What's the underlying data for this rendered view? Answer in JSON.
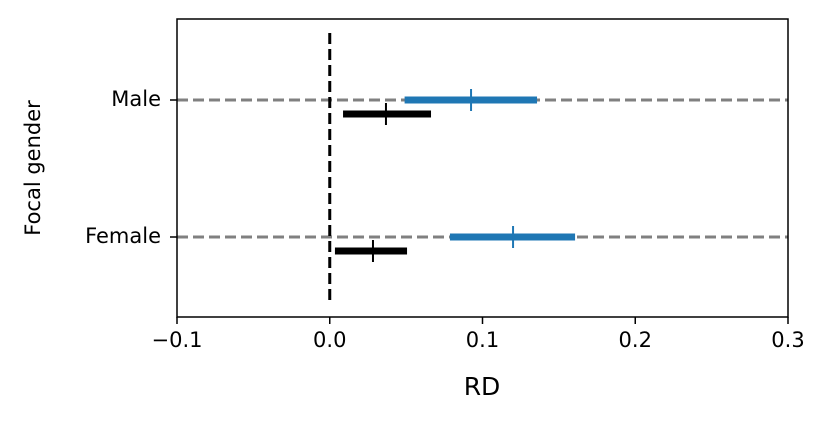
{
  "chart_data": {
    "type": "errorbar",
    "orientation": "horizontal",
    "xlabel": "RD",
    "ylabel": "Focal gender",
    "categories": [
      "Male",
      "Female"
    ],
    "series": [
      {
        "color": "#1f77b4",
        "values": [
          0.0925,
          0.12
        ],
        "ci_low": [
          0.049,
          0.0787
        ],
        "ci_high": [
          0.1357,
          0.1606
        ]
      },
      {
        "color": "#000000",
        "values": [
          0.0368,
          0.0283
        ],
        "ci_low": [
          0.0087,
          0.0034
        ],
        "ci_high": [
          0.0663,
          0.0506
        ]
      }
    ],
    "xlim": [
      -0.1,
      0.3
    ],
    "xticks": [
      {
        "value": -0.1,
        "label": "−0.1"
      },
      {
        "value": 0,
        "label": "0.0"
      },
      0.1,
      0.2,
      0.3
    ],
    "reference_x": 0,
    "category_lines": true
  }
}
